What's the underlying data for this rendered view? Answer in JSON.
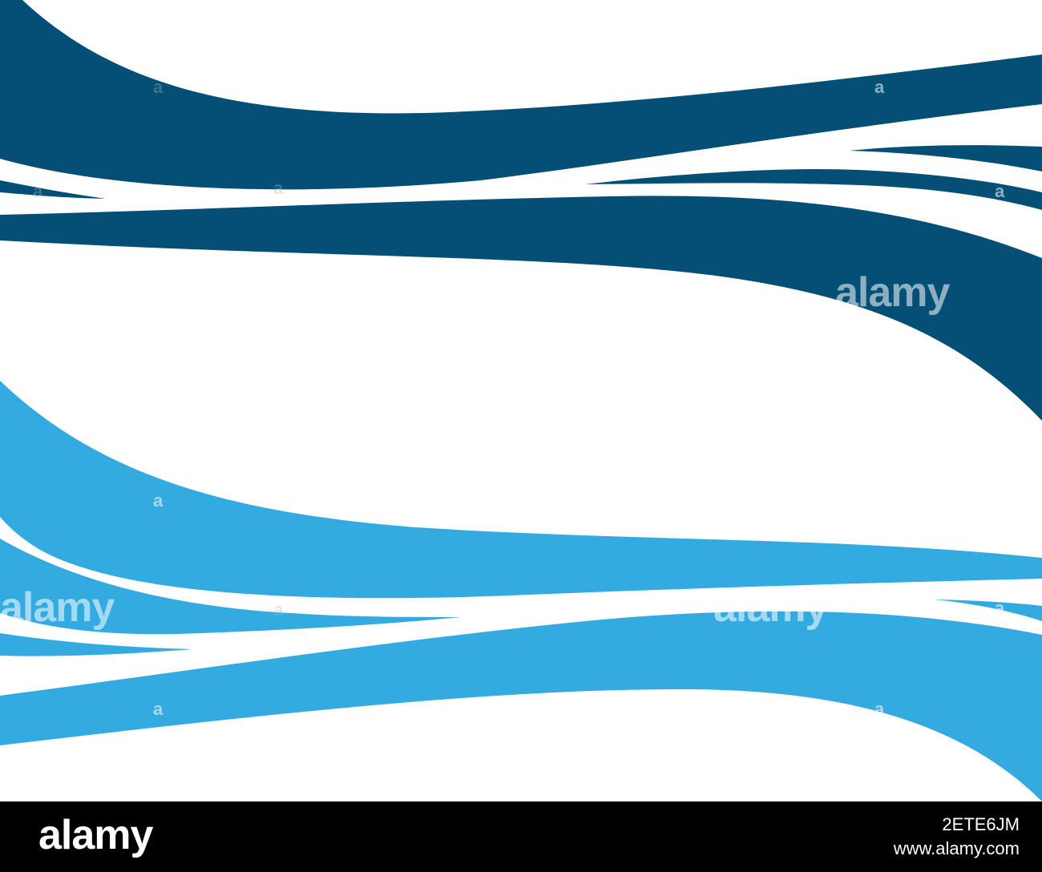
{
  "artwork": {
    "colors": {
      "background": "#ffffff",
      "dark_wave": "#044f76",
      "light_wave": "#33aae0"
    }
  },
  "watermark": {
    "large_text": "alamy",
    "small_text": "a"
  },
  "footer": {
    "brand": "alamy",
    "image_id": "2ETE6JM",
    "site": "www.alamy.com",
    "background": "#000000"
  }
}
